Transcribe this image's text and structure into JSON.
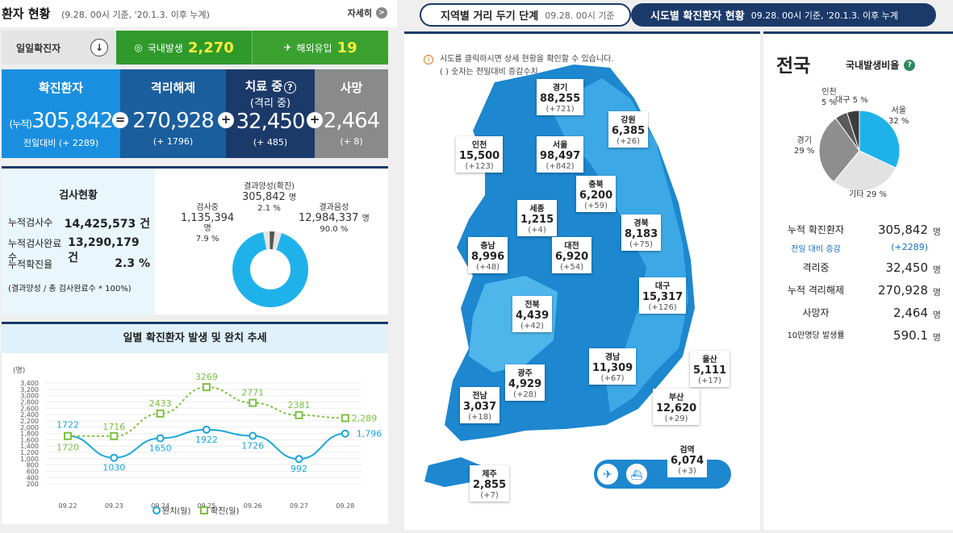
{
  "header": {
    "title": "환자 현황",
    "subtitle": "(9.28. 00시 기준, '20.1.3. 이후 누계)",
    "more": "자세히"
  },
  "daily": {
    "label": "일일확진자",
    "domestic_label": "국내발생",
    "domestic": "2,270",
    "overseas_label": "해외유입",
    "overseas": "19"
  },
  "totals": [
    {
      "title": "확진환자",
      "prefix": "(누적)",
      "value": "305,842",
      "op": "=",
      "delta": "전일대비 (+ 2289)",
      "color": "#1a8fe0"
    },
    {
      "title": "격리해제",
      "value": "270,928",
      "op": "+",
      "delta": "(+ 1796)",
      "color": "#1a5e9e"
    },
    {
      "title": "치료 중",
      "sub": "(격리 중)",
      "value": "32,450",
      "op": "+",
      "delta": "(+ 485)",
      "color": "#1b3a6a"
    },
    {
      "title": "사망",
      "value": "2,464",
      "delta": "(+ 8)",
      "color": "#8a8a8a"
    }
  ],
  "test": {
    "title": "검사현황",
    "rows": [
      {
        "k": "누적검사수",
        "v": "14,425,573 건"
      },
      {
        "k": "누적검사완료수",
        "v": "13,290,179 건"
      },
      {
        "k": "누적확진율",
        "v": "2.3 %"
      }
    ],
    "note": "(결과양성 / 총 검사완료수 * 100%)",
    "pending_label": "검사중",
    "pending": "1,135,394",
    "pending_unit": "명",
    "pending_pct": "7.9 %",
    "positive_label": "결과양성(확진)",
    "positive": "305,842",
    "positive_unit": "명",
    "positive_pct": "2.1 %",
    "negative_label": "결과음성",
    "negative": "12,984,337",
    "negative_unit": "명",
    "negative_pct": "90.0 %"
  },
  "trend": {
    "title": "일별 확진환자 발생 및 완치 추세",
    "legend_cured": "완치(일)",
    "legend_conf": "확진(일)"
  },
  "tabs": {
    "t1": "지역별 거리 두기 단계",
    "t1s": "09.28. 00시 기준",
    "t2": "시도별 확진환자 현황",
    "t2s": "09.28. 00시 기준, '20.1.3. 이후 누계"
  },
  "map_note": {
    "l1": "시도를 클릭하시면 상세 현황을 확인할 수 있습니다.",
    "l2": "( ) 숫자는 전일대비 증감수치"
  },
  "regions": [
    {
      "n": "경기",
      "c": "88,255",
      "d": "(+721)"
    },
    {
      "n": "강원",
      "c": "6,385",
      "d": "(+26)"
    },
    {
      "n": "인천",
      "c": "15,500",
      "d": "(+123)"
    },
    {
      "n": "서울",
      "c": "98,497",
      "d": "(+842)"
    },
    {
      "n": "충북",
      "c": "6,200",
      "d": "(+59)"
    },
    {
      "n": "세종",
      "c": "1,215",
      "d": "(+4)"
    },
    {
      "n": "경북",
      "c": "8,183",
      "d": "(+75)"
    },
    {
      "n": "충남",
      "c": "8,996",
      "d": "(+48)"
    },
    {
      "n": "대전",
      "c": "6,920",
      "d": "(+54)"
    },
    {
      "n": "대구",
      "c": "15,317",
      "d": "(+126)"
    },
    {
      "n": "전북",
      "c": "4,439",
      "d": "(+42)"
    },
    {
      "n": "경남",
      "c": "11,309",
      "d": "(+67)"
    },
    {
      "n": "울산",
      "c": "5,111",
      "d": "(+17)"
    },
    {
      "n": "광주",
      "c": "4,929",
      "d": "(+28)"
    },
    {
      "n": "전남",
      "c": "3,037",
      "d": "(+18)"
    },
    {
      "n": "부산",
      "c": "12,620",
      "d": "(+29)"
    },
    {
      "n": "검역",
      "c": "6,074",
      "d": "(+3)"
    },
    {
      "n": "제주",
      "c": "2,855",
      "d": "(+7)"
    }
  ],
  "national": {
    "title": "전국",
    "ratio": "국내발생비율",
    "stats": [
      {
        "k": "누적 확진환자",
        "v": "305,842",
        "u": "명"
      },
      {
        "k": "전일 대비 증감",
        "v": "(+2289)",
        "u": ""
      },
      {
        "k": "격리중",
        "v": "32,450",
        "u": "명"
      },
      {
        "k": "누적 격리해제",
        "v": "270,928",
        "u": "명"
      },
      {
        "k": "사망자",
        "v": "2,464",
        "u": "명"
      },
      {
        "k": "10만명당 발생률",
        "v": "590.1",
        "u": "명"
      }
    ],
    "pie": [
      {
        "name": "서울",
        "pct": "32 %",
        "value": 32,
        "color": "#1fb2ea"
      },
      {
        "name": "기타",
        "pct": "29 %",
        "value": 29,
        "color": "#e2e2e2"
      },
      {
        "name": "경기",
        "pct": "29 %",
        "value": 29,
        "color": "#8e8e8e"
      },
      {
        "name": "대구",
        "pct": "5 %",
        "value": 5,
        "color": "#5a5a5a"
      },
      {
        "name": "인천",
        "pct": "5 %",
        "value": 5,
        "color": "#3c3c3c"
      }
    ]
  },
  "chart_data": {
    "type": "line",
    "title": "일별 확진환자 발생 및 완치 추세",
    "ylabel": "(명)",
    "ylim": [
      0,
      3400
    ],
    "yticks": [
      "3,400",
      "3,200",
      "3,000",
      "2,800",
      "2,600",
      "2,400",
      "2,200",
      "2,000",
      "1,800",
      "1,600",
      "1,400",
      "1,200",
      "1,000",
      "800",
      "600",
      "400",
      "200"
    ],
    "categories": [
      "09.22",
      "09.23",
      "09.24",
      "09.25",
      "09.26",
      "09.27",
      "09.28"
    ],
    "series": [
      {
        "name": "완치(일)",
        "values": [
          1722,
          1030,
          1650,
          1922,
          1726,
          992,
          1796
        ],
        "labels": [
          "1722",
          "1030",
          "1650",
          "1922",
          "1726",
          "992",
          "1,796"
        ],
        "color": "#1aa7dc"
      },
      {
        "name": "확진(일)",
        "values": [
          1720,
          1716,
          2433,
          3269,
          2771,
          2381,
          2289
        ],
        "labels": [
          "1720",
          "1716",
          "2433",
          "3269",
          "2771",
          "2381",
          "2,289"
        ],
        "color": "#7cc142"
      }
    ]
  }
}
